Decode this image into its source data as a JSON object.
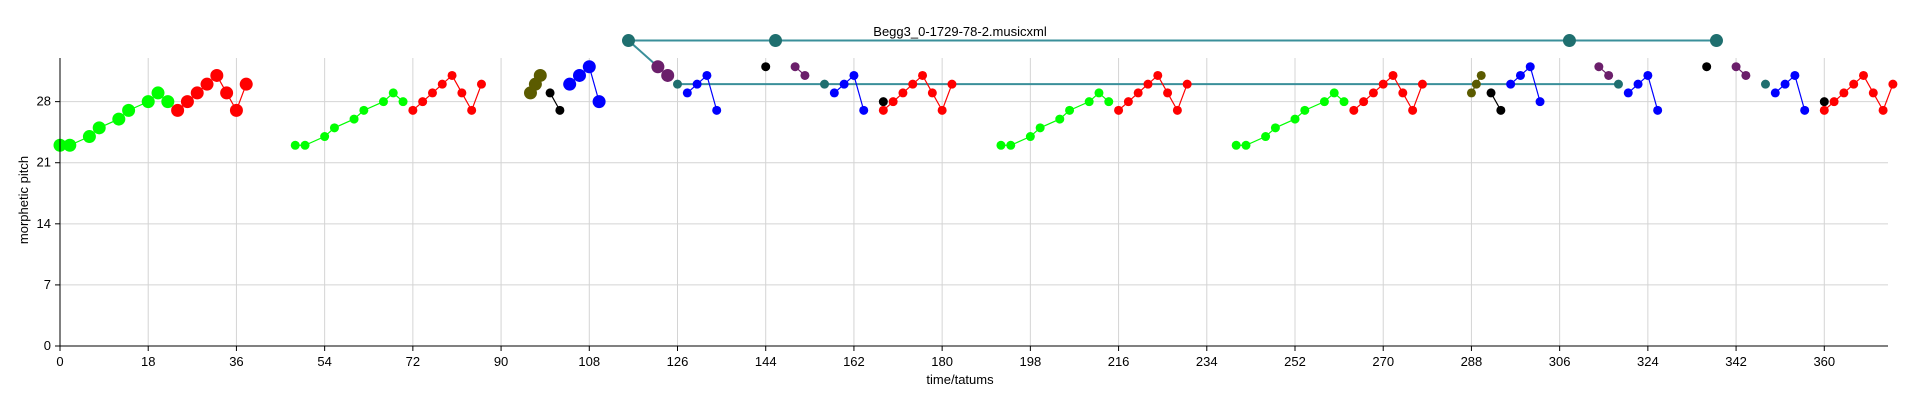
{
  "chart_data": {
    "type": "scatter",
    "title": "Begg3_0-1729-78-2.musicxml",
    "xlabel": "time/tatums",
    "ylabel": "morphetic pitch",
    "xlim": [
      0,
      373
    ],
    "ylim": [
      0,
      33
    ],
    "xticks": [
      0,
      18,
      36,
      54,
      72,
      90,
      108,
      126,
      144,
      162,
      180,
      198,
      216,
      234,
      252,
      270,
      288,
      306,
      324,
      342,
      360
    ],
    "yticks": [
      0,
      7,
      14,
      21,
      28
    ],
    "grid": true,
    "colors": {
      "green": "#00ff00",
      "red": "#ff0000",
      "blue": "#0000ff",
      "black": "#000000",
      "olive": "#5b5b00",
      "teal": "#1f6f6f",
      "purple": "#6b1f6b",
      "connector_teal": "#3a8f9a"
    },
    "series": [
      {
        "color": "green",
        "size": "large",
        "points": [
          [
            0,
            23
          ],
          [
            2,
            23
          ],
          [
            6,
            24
          ],
          [
            8,
            25
          ],
          [
            12,
            26
          ],
          [
            14,
            27
          ],
          [
            18,
            28
          ],
          [
            20,
            29
          ],
          [
            22,
            28
          ]
        ]
      },
      {
        "color": "red",
        "size": "large",
        "points": [
          [
            24,
            27
          ],
          [
            26,
            28
          ],
          [
            28,
            29
          ],
          [
            30,
            30
          ],
          [
            32,
            31
          ],
          [
            34,
            29
          ],
          [
            36,
            27
          ],
          [
            38,
            30
          ]
        ]
      },
      {
        "color": "green",
        "size": "small",
        "points": [
          [
            48,
            23
          ],
          [
            50,
            23
          ],
          [
            54,
            24
          ],
          [
            56,
            25
          ],
          [
            60,
            26
          ],
          [
            62,
            27
          ],
          [
            66,
            28
          ],
          [
            68,
            29
          ],
          [
            70,
            28
          ]
        ]
      },
      {
        "color": "red",
        "size": "small",
        "points": [
          [
            72,
            27
          ],
          [
            74,
            28
          ],
          [
            76,
            29
          ],
          [
            78,
            30
          ],
          [
            80,
            31
          ],
          [
            82,
            29
          ],
          [
            84,
            27
          ],
          [
            86,
            30
          ]
        ]
      },
      {
        "color": "olive",
        "size": "large",
        "points": [
          [
            96,
            29
          ],
          [
            97,
            30
          ],
          [
            98,
            31
          ]
        ]
      },
      {
        "color": "black",
        "size": "small",
        "points": [
          [
            100,
            29
          ],
          [
            102,
            27
          ]
        ]
      },
      {
        "color": "blue",
        "size": "large",
        "points": [
          [
            104,
            30
          ],
          [
            106,
            31
          ],
          [
            108,
            32
          ],
          [
            110,
            28
          ]
        ]
      },
      {
        "color": "purple",
        "size": "large",
        "points": [
          [
            122,
            32
          ],
          [
            124,
            31
          ]
        ]
      },
      {
        "color": "teal",
        "size": "small",
        "points": [
          [
            126,
            30
          ]
        ]
      },
      {
        "color": "blue",
        "size": "small",
        "points": [
          [
            128,
            29
          ],
          [
            130,
            30
          ],
          [
            132,
            31
          ],
          [
            134,
            27
          ]
        ]
      },
      {
        "color": "black",
        "size": "small",
        "points": [
          [
            144,
            32
          ]
        ]
      },
      {
        "color": "purple",
        "size": "small",
        "points": [
          [
            150,
            32
          ],
          [
            152,
            31
          ]
        ]
      },
      {
        "color": "teal",
        "size": "small",
        "points": [
          [
            156,
            30
          ]
        ]
      },
      {
        "color": "blue",
        "size": "small",
        "points": [
          [
            158,
            29
          ],
          [
            160,
            30
          ],
          [
            162,
            31
          ],
          [
            164,
            27
          ]
        ]
      },
      {
        "color": "black",
        "size": "small",
        "points": [
          [
            168,
            28
          ]
        ]
      },
      {
        "color": "red",
        "size": "small",
        "points": [
          [
            168,
            27
          ],
          [
            170,
            28
          ],
          [
            172,
            29
          ],
          [
            174,
            30
          ],
          [
            176,
            31
          ],
          [
            178,
            29
          ],
          [
            180,
            27
          ],
          [
            182,
            30
          ]
        ]
      },
      {
        "color": "green",
        "size": "small",
        "points": [
          [
            192,
            23
          ],
          [
            194,
            23
          ],
          [
            198,
            24
          ],
          [
            200,
            25
          ],
          [
            204,
            26
          ],
          [
            206,
            27
          ],
          [
            210,
            28
          ],
          [
            212,
            29
          ],
          [
            214,
            28
          ]
        ]
      },
      {
        "color": "red",
        "size": "small",
        "points": [
          [
            216,
            27
          ],
          [
            218,
            28
          ],
          [
            220,
            29
          ],
          [
            222,
            30
          ],
          [
            224,
            31
          ],
          [
            226,
            29
          ],
          [
            228,
            27
          ],
          [
            230,
            30
          ]
        ]
      },
      {
        "color": "green",
        "size": "small",
        "points": [
          [
            240,
            23
          ],
          [
            242,
            23
          ],
          [
            246,
            24
          ],
          [
            248,
            25
          ],
          [
            252,
            26
          ],
          [
            254,
            27
          ],
          [
            258,
            28
          ],
          [
            260,
            29
          ],
          [
            262,
            28
          ]
        ]
      },
      {
        "color": "red",
        "size": "small",
        "points": [
          [
            264,
            27
          ],
          [
            266,
            28
          ],
          [
            268,
            29
          ],
          [
            270,
            30
          ],
          [
            272,
            31
          ],
          [
            274,
            29
          ],
          [
            276,
            27
          ],
          [
            278,
            30
          ]
        ]
      },
      {
        "color": "olive",
        "size": "small",
        "points": [
          [
            288,
            29
          ],
          [
            289,
            30
          ],
          [
            290,
            31
          ]
        ]
      },
      {
        "color": "black",
        "size": "small",
        "points": [
          [
            292,
            29
          ],
          [
            294,
            27
          ]
        ]
      },
      {
        "color": "blue",
        "size": "small",
        "points": [
          [
            296,
            30
          ],
          [
            298,
            31
          ],
          [
            300,
            32
          ],
          [
            302,
            28
          ]
        ]
      },
      {
        "color": "purple",
        "size": "small",
        "points": [
          [
            314,
            32
          ],
          [
            316,
            31
          ]
        ]
      },
      {
        "color": "teal",
        "size": "small",
        "points": [
          [
            318,
            30
          ]
        ]
      },
      {
        "color": "blue",
        "size": "small",
        "points": [
          [
            320,
            29
          ],
          [
            322,
            30
          ],
          [
            324,
            31
          ],
          [
            326,
            27
          ]
        ]
      },
      {
        "color": "black",
        "size": "small",
        "points": [
          [
            336,
            32
          ]
        ]
      },
      {
        "color": "purple",
        "size": "small",
        "points": [
          [
            342,
            32
          ],
          [
            344,
            31
          ]
        ]
      },
      {
        "color": "teal",
        "size": "small",
        "points": [
          [
            348,
            30
          ]
        ]
      },
      {
        "color": "blue",
        "size": "small",
        "points": [
          [
            350,
            29
          ],
          [
            352,
            30
          ],
          [
            354,
            31
          ],
          [
            356,
            27
          ]
        ]
      },
      {
        "color": "black",
        "size": "small",
        "points": [
          [
            360,
            28
          ]
        ]
      },
      {
        "color": "red",
        "size": "small",
        "points": [
          [
            360,
            27
          ],
          [
            362,
            28
          ],
          [
            364,
            29
          ],
          [
            366,
            30
          ],
          [
            368,
            31
          ],
          [
            370,
            29
          ],
          [
            372,
            27
          ],
          [
            374,
            30
          ]
        ]
      }
    ],
    "connectors": [
      {
        "color": "connector_teal",
        "from": [
          116,
          35
        ],
        "to": [
          146,
          35
        ]
      },
      {
        "color": "connector_teal",
        "from": [
          146,
          35
        ],
        "to": [
          308,
          35
        ]
      },
      {
        "color": "connector_teal",
        "from": [
          308,
          35
        ],
        "to": [
          338,
          35
        ]
      },
      {
        "color": "connector_teal",
        "from": [
          116,
          35
        ],
        "to": [
          122,
          32
        ]
      },
      {
        "color": "connector_teal",
        "from": [
          126,
          30
        ],
        "to": [
          318,
          30
        ]
      }
    ],
    "markers": [
      {
        "color": "teal",
        "size": "large",
        "x": 116,
        "y": 35
      },
      {
        "color": "teal",
        "size": "large",
        "x": 146,
        "y": 35
      },
      {
        "color": "teal",
        "size": "large",
        "x": 308,
        "y": 35
      },
      {
        "color": "teal",
        "size": "large",
        "x": 338,
        "y": 35
      }
    ]
  }
}
